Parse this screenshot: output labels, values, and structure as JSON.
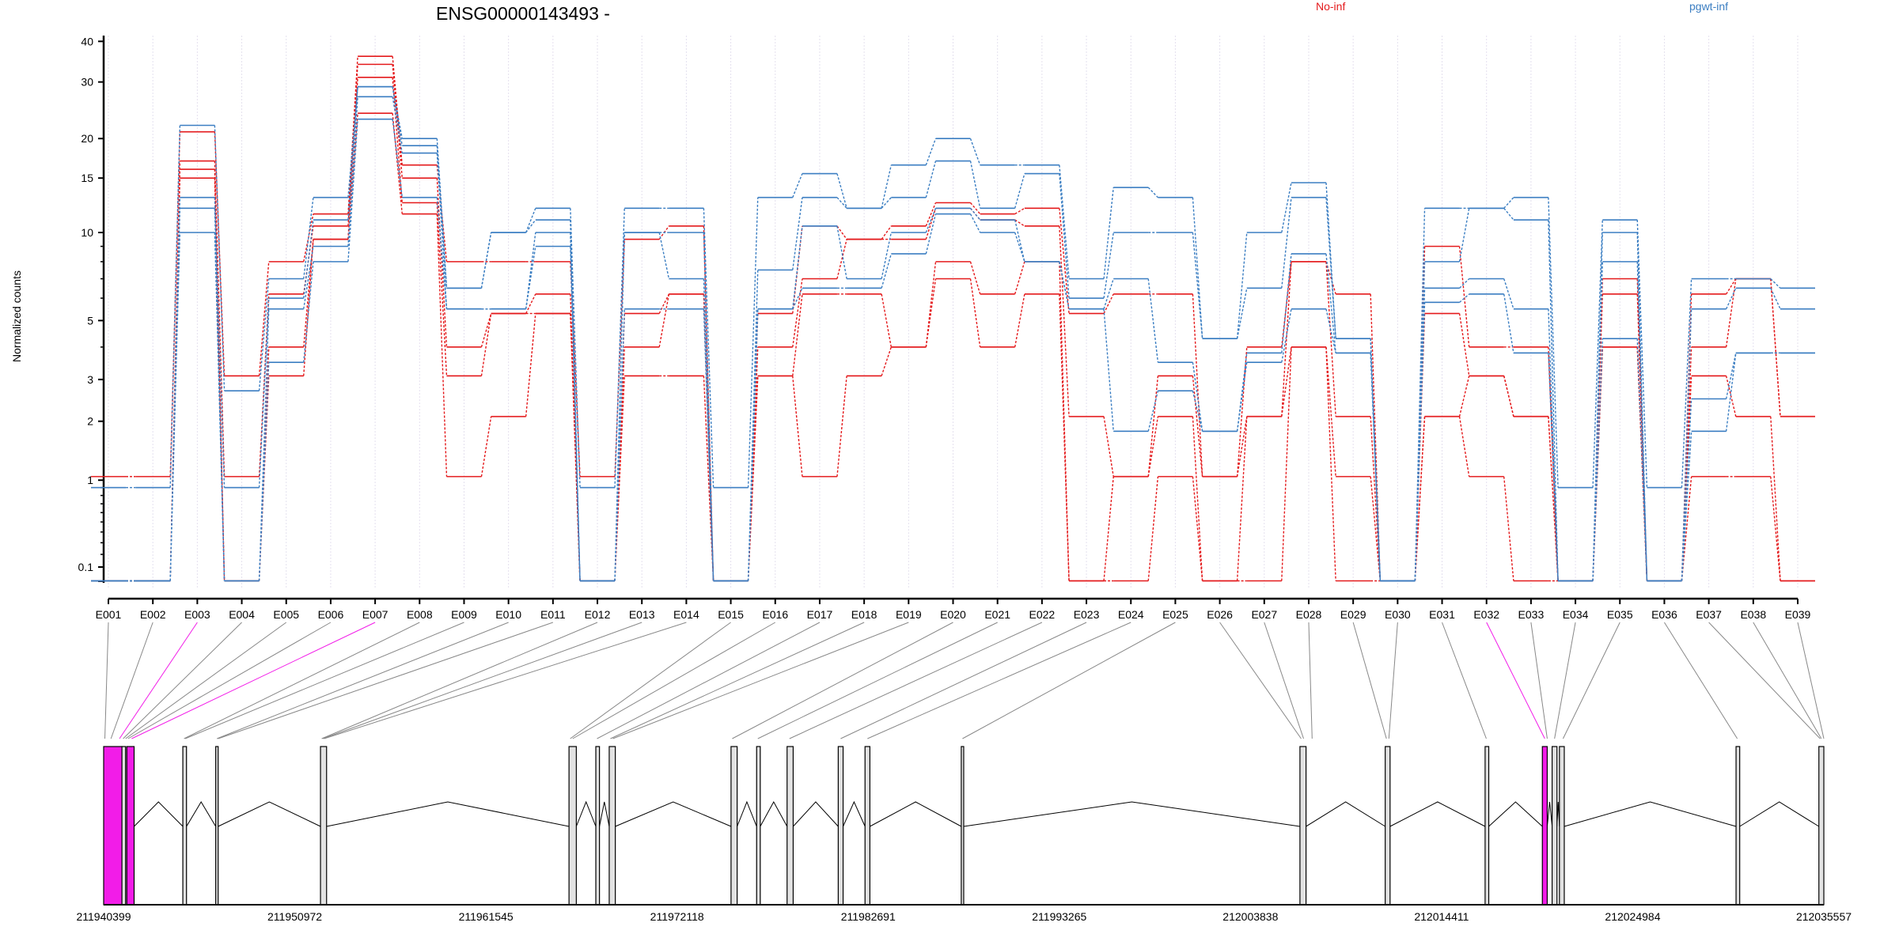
{
  "chart_data": {
    "type": "line",
    "title": "ENSG00000143493 -",
    "ylabel": "Normalized counts",
    "y_scale": "log10(count+1)",
    "ylim": [
      0,
      40
    ],
    "y_ticks": [
      0.1,
      1,
      2,
      3,
      5,
      10,
      15,
      20,
      30,
      40
    ],
    "y_tick_labels": [
      "0.1",
      "1",
      "2",
      "3",
      "5",
      "10",
      "15",
      "20",
      "30",
      "40"
    ],
    "y_minor_ticks": [
      0.2,
      0.3,
      0.4,
      0.5,
      0.6,
      0.7,
      0.8,
      0.9,
      4,
      6,
      7,
      8,
      9
    ],
    "categories": [
      "E001",
      "E002",
      "E003",
      "E004",
      "E005",
      "E006",
      "E007",
      "E008",
      "E009",
      "E010",
      "E011",
      "E012",
      "E013",
      "E014",
      "E015",
      "E016",
      "E017",
      "E018",
      "E019",
      "E020",
      "E021",
      "E022",
      "E023",
      "E024",
      "E025",
      "E026",
      "E027",
      "E028",
      "E029",
      "E030",
      "E031",
      "E032",
      "E033",
      "E034",
      "E035",
      "E036",
      "E037",
      "E038",
      "E039"
    ],
    "grid": true,
    "legend": {
      "placement": "top-right",
      "entries": [
        "No-inf",
        "pgwt-inf"
      ]
    },
    "series": [
      {
        "name": "No-inf",
        "color": "#E41A1C",
        "samples_per_exon": [
          [
            1.05,
            0,
            0,
            0
          ],
          [
            1.05,
            0,
            0,
            0
          ],
          [
            21,
            17,
            16,
            15
          ],
          [
            3.1,
            1.05,
            0,
            0
          ],
          [
            8,
            6.2,
            4,
            3.1
          ],
          [
            11.5,
            10.5,
            9.5,
            9.5
          ],
          [
            36,
            34,
            31,
            24
          ],
          [
            16.5,
            15,
            12.5,
            11.5
          ],
          [
            8,
            4,
            3.1,
            1.05
          ],
          [
            8,
            5.3,
            5.3,
            2.1
          ],
          [
            8,
            6.2,
            5.3,
            5.3
          ],
          [
            1.05,
            0,
            0,
            0
          ],
          [
            9.5,
            5.3,
            4,
            3.1
          ],
          [
            10.5,
            6.2,
            6.2,
            3.1
          ],
          [
            0,
            0,
            0,
            0
          ],
          [
            5.3,
            4,
            3.1,
            3.1
          ],
          [
            10.5,
            7,
            6.2,
            1.05
          ],
          [
            9.5,
            9.5,
            6.2,
            3.1
          ],
          [
            10.5,
            9.5,
            4,
            4
          ],
          [
            12.5,
            12,
            8,
            7
          ],
          [
            11.5,
            11,
            6.2,
            4
          ],
          [
            12,
            10.5,
            8,
            6.2
          ],
          [
            5.3,
            2.1,
            0,
            0
          ],
          [
            6.2,
            1.05,
            1.05,
            0
          ],
          [
            6.2,
            3.1,
            2.1,
            1.05
          ],
          [
            1.05,
            1.05,
            0,
            0
          ],
          [
            4,
            2.1,
            2.1,
            0
          ],
          [
            8,
            8,
            4,
            4
          ],
          [
            6.2,
            2.1,
            1.05,
            0
          ],
          [
            0,
            0,
            0,
            0
          ],
          [
            9,
            5.3,
            2.1,
            2.1
          ],
          [
            4,
            3.1,
            3.1,
            1.05
          ],
          [
            4,
            2.1,
            2.1,
            0
          ],
          [
            0,
            0,
            0,
            0
          ],
          [
            7,
            6.2,
            4,
            4
          ],
          [
            0,
            0,
            0,
            0
          ],
          [
            6.2,
            4,
            3.1,
            1.05
          ],
          [
            7,
            7,
            2.1,
            1.05
          ],
          [
            2.1,
            2.1,
            0,
            0
          ]
        ]
      },
      {
        "name": "pgwt-inf",
        "color": "#3B7EC2",
        "samples_per_exon": [
          [
            0.9,
            0,
            0,
            0
          ],
          [
            0.9,
            0,
            0,
            0
          ],
          [
            22,
            13,
            12,
            10
          ],
          [
            2.7,
            0.9,
            0,
            0
          ],
          [
            7,
            6,
            5.5,
            3.5
          ],
          [
            13,
            11,
            9,
            8
          ],
          [
            29,
            29,
            27,
            23
          ],
          [
            20,
            19,
            18,
            13
          ],
          [
            6.5,
            6.5,
            5.5,
            5.5
          ],
          [
            10,
            10,
            5.5,
            5.5
          ],
          [
            12,
            11,
            10,
            9
          ],
          [
            0.9,
            0,
            0,
            0
          ],
          [
            12,
            10,
            10,
            5.5
          ],
          [
            12,
            10,
            7,
            5.5
          ],
          [
            0.9,
            0,
            0,
            0
          ],
          [
            13,
            7.5,
            5.5,
            5.5
          ],
          [
            15.5,
            13,
            10.5,
            6.5
          ],
          [
            12,
            12,
            7,
            6.5
          ],
          [
            16.5,
            13,
            10,
            8.5
          ],
          [
            20,
            17,
            12,
            11.5
          ],
          [
            16.5,
            12,
            11,
            10
          ],
          [
            16.5,
            15.5,
            8,
            8
          ],
          [
            7,
            6,
            5.5,
            5.5
          ],
          [
            14,
            10,
            7,
            1.8
          ],
          [
            13,
            10,
            3.5,
            2.7
          ],
          [
            4.3,
            4.3,
            1.8,
            1.8
          ],
          [
            10,
            6.5,
            3.8,
            3.5
          ],
          [
            14.5,
            13,
            8.5,
            5.5
          ],
          [
            4.3,
            4.3,
            3.8,
            3.8
          ],
          [
            0,
            0,
            0,
            0
          ],
          [
            12,
            8,
            6.5,
            5.8
          ],
          [
            12,
            12,
            7,
            6.2
          ],
          [
            13,
            11,
            5.5,
            3.8
          ],
          [
            0.9,
            0,
            0,
            0
          ],
          [
            11,
            10,
            8,
            4.3
          ],
          [
            0.9,
            0,
            0,
            0
          ],
          [
            7,
            5.5,
            2.5,
            1.8
          ],
          [
            7,
            6.5,
            3.8,
            3.8
          ],
          [
            6.5,
            5.5,
            3.8,
            3.8
          ]
        ]
      }
    ],
    "gene_model": {
      "genome_start": 211940399,
      "genome_end": 212035557,
      "axis_tick_labels": [
        "211940399",
        "211950972",
        "211961545",
        "211972118",
        "211982691",
        "211993265",
        "212003838",
        "212014411",
        "212024984",
        "212035557"
      ],
      "axis_ticks": [
        211940399,
        211950972,
        211961545,
        211972118,
        211982691,
        211993265,
        212003838,
        212014411,
        212024984,
        212035557
      ],
      "highlight_color": "#F21CE8",
      "exons_offset_bp": [
        [
          0,
          1011,
          true
        ],
        [
          1011,
          1213,
          false
        ],
        [
          1280,
          1685,
          true
        ],
        [
          4380,
          4583,
          false
        ],
        [
          6200,
          6335,
          false
        ],
        [
          11995,
          12332,
          false
        ],
        [
          25743,
          26147,
          false
        ],
        [
          27226,
          27428,
          false
        ],
        [
          27967,
          28304,
          false
        ],
        [
          34706,
          35043,
          false
        ],
        [
          36121,
          36323,
          false
        ],
        [
          37806,
          38143,
          false
        ],
        [
          40636,
          40905,
          false
        ],
        [
          42118,
          42387,
          false
        ],
        [
          47442,
          47577,
          false
        ],
        [
          66177,
          66514,
          false
        ],
        [
          70894,
          71163,
          false
        ],
        [
          76420,
          76622,
          false
        ],
        [
          79587,
          79857,
          true
        ],
        [
          80127,
          80396,
          false
        ],
        [
          80531,
          80800,
          false
        ],
        [
          90302,
          90504,
          false
        ],
        [
          94884,
          95158,
          false
        ]
      ],
      "bin_positions_offset_bp": [
        67,
        404,
        876,
        1078,
        1213,
        1348,
        1550,
        4448,
        4515,
        6267,
        6335,
        12063,
        12130,
        12198,
        25810,
        25945,
        27293,
        28034,
        28169,
        34773,
        36188,
        37940,
        40770,
        42253,
        47510,
        66244,
        66379,
        66851,
        70962,
        71096,
        76487,
        79722,
        79857,
        80261,
        80733,
        90370,
        94952,
        95020,
        95158
      ],
      "highlighted_bins": [
        "E003",
        "E007",
        "E032"
      ]
    }
  }
}
